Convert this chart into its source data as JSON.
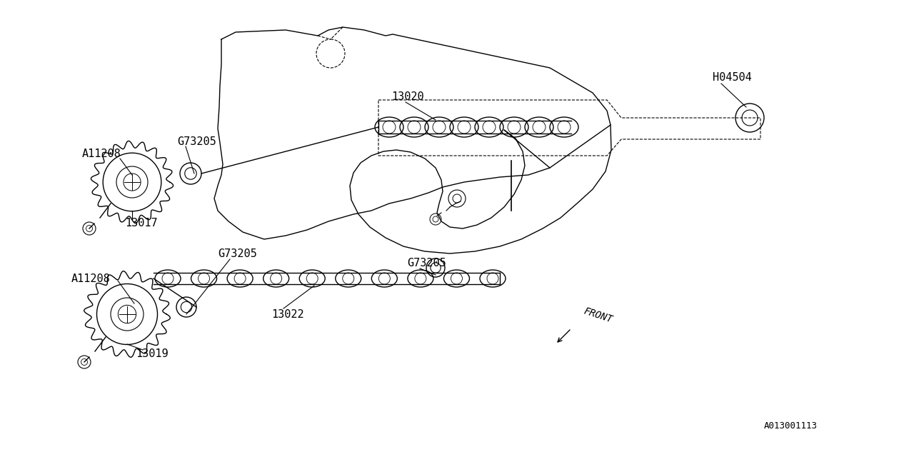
{
  "bg_color": "#ffffff",
  "line_color": "#000000",
  "figsize": [
    12.8,
    6.4
  ],
  "dpi": 100,
  "labels": {
    "A11208_upper": "A11208",
    "G73205_upper": "G73205",
    "13017": "13017",
    "13020": "13020",
    "H04504": "H04504",
    "A11208_lower": "A11208",
    "G73205_lower_left": "G73205",
    "G73205_lower_right": "G73205",
    "13019": "13019",
    "13022": "13022",
    "A013001113": "A013001113",
    "FRONT": "FRONT"
  }
}
